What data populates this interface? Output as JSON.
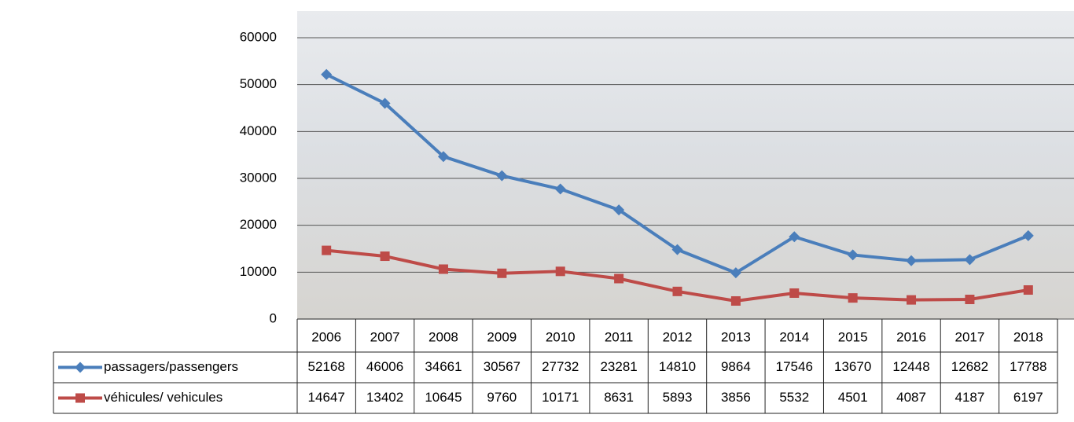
{
  "chart_data": {
    "type": "line",
    "categories": [
      "2006",
      "2007",
      "2008",
      "2009",
      "2010",
      "2011",
      "2012",
      "2013",
      "2014",
      "2015",
      "2016",
      "2017",
      "2018"
    ],
    "series": [
      {
        "name": "passagers/passengers",
        "color": "#4a7ebb",
        "marker": "diamond",
        "values": [
          52168,
          46006,
          34661,
          30567,
          27732,
          23281,
          14810,
          9864,
          17546,
          13670,
          12448,
          12682,
          17788
        ]
      },
      {
        "name": "véhicules/ vehicules",
        "color": "#be4b48",
        "marker": "square",
        "values": [
          14647,
          13402,
          10645,
          9760,
          10171,
          8631,
          5893,
          3856,
          5532,
          4501,
          4087,
          4187,
          6197
        ]
      }
    ],
    "ylim": [
      0,
      60000
    ],
    "yticks": [
      0,
      10000,
      20000,
      30000,
      40000,
      50000,
      60000
    ],
    "grid": true
  }
}
